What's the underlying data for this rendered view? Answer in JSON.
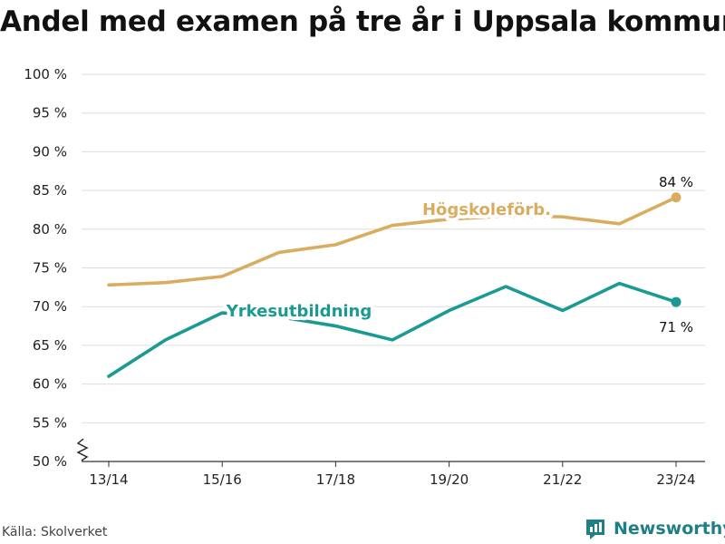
{
  "title": "Andel med examen på tre år i Uppsala kommun",
  "source": "Källa: Skolverket",
  "brand": {
    "name": "Newsworthy",
    "icon": "bar-chart-logo-icon",
    "color": "#1e7f86"
  },
  "chart_data": {
    "type": "line",
    "x": [
      "13/14",
      "14/15",
      "15/16",
      "16/17",
      "17/18",
      "18/19",
      "19/20",
      "20/21",
      "21/22",
      "22/23",
      "23/24"
    ],
    "x_tick_labels": [
      "13/14",
      "15/16",
      "17/18",
      "19/20",
      "21/22",
      "23/24"
    ],
    "y_tick_labels": [
      "50 %",
      "55 %",
      "60 %",
      "65 %",
      "70 %",
      "75 %",
      "80 %",
      "85 %",
      "90 %",
      "95 %",
      "100 %"
    ],
    "ylim": [
      50,
      100
    ],
    "yticks": [
      50,
      55,
      60,
      65,
      70,
      75,
      80,
      85,
      90,
      95,
      100
    ],
    "axis_break": true,
    "grid": true,
    "series": [
      {
        "name": "Högskoleförb.",
        "color": "#d9ad5f",
        "values": [
          72.8,
          73.1,
          73.9,
          77.0,
          78.0,
          80.5,
          81.3,
          81.7,
          81.6,
          80.7,
          84.1
        ],
        "end_label": "84 %"
      },
      {
        "name": "Yrkesutbildning",
        "color": "#1b9a94",
        "values": [
          61.0,
          65.7,
          69.2,
          68.7,
          67.5,
          65.7,
          69.5,
          72.6,
          69.5,
          73.0,
          70.6
        ],
        "end_label": "71 %"
      }
    ]
  }
}
